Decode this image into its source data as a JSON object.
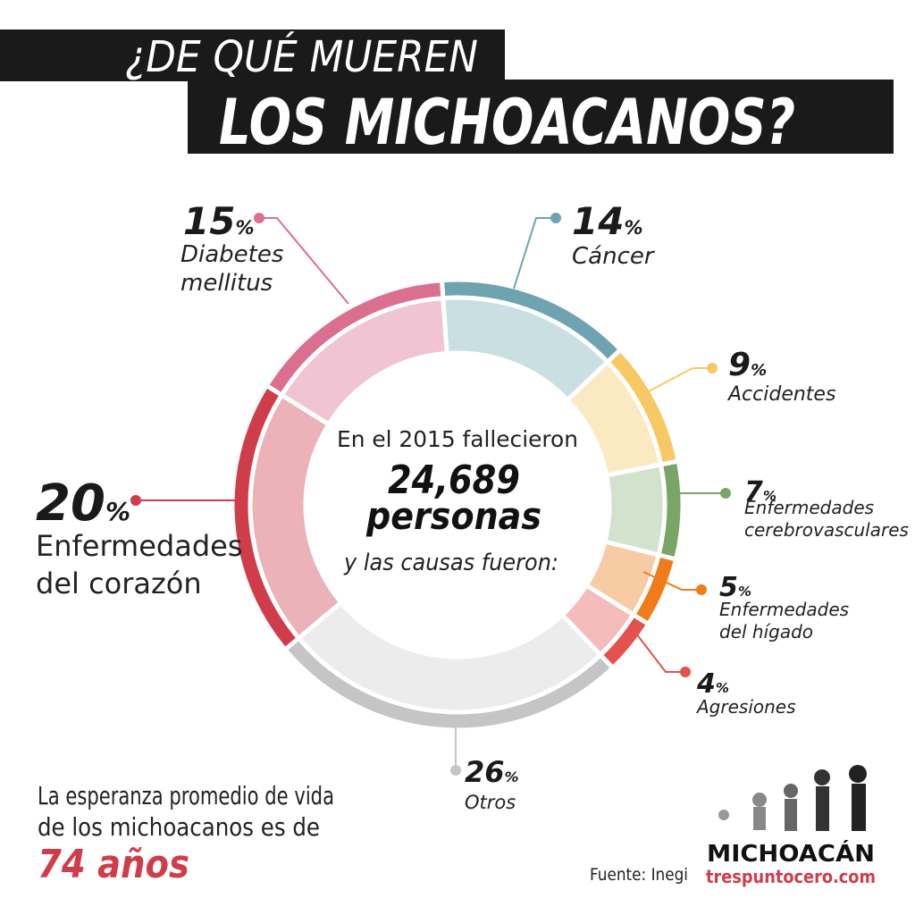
{
  "title_lines": [
    "¿DE QUÉ MUEREN",
    "LOS MICHOACANOS?"
  ],
  "chart_data": {
    "type": "donut",
    "categories": [
      [
        "Cáncer"
      ],
      [
        "Accidentes"
      ],
      [
        "Enfermedades",
        "cerebrovasculares"
      ],
      [
        "Enfermedades",
        "del hígado"
      ],
      [
        "Agresiones"
      ],
      [
        "Otros"
      ],
      [
        "Enfermedades",
        "del corazón"
      ],
      [
        "Diabetes",
        "mellitus"
      ]
    ],
    "values": [
      14,
      9,
      7,
      5,
      4,
      26,
      20,
      15
    ],
    "unit": "%",
    "colors": [
      "#6ea4b0",
      "#f6c965",
      "#7aa566",
      "#ef7b1a",
      "#e4524d",
      "#c5c5c5",
      "#cf3d4b",
      "#da6f8f"
    ],
    "light_colors": [
      "#c9dfe2",
      "#fbe9c1",
      "#d3e2cc",
      "#f7cca5",
      "#f5bcbc",
      "#ececec",
      "#ebb2b8",
      "#f0c4d2"
    ],
    "center_lines": [
      "En el 2015 fallecieron",
      "24,689",
      "personas",
      "y las causas fueron:"
    ]
  },
  "footer": {
    "life_lines": [
      "La esperanza promedio de vida",
      "de los michoacanos es de"
    ],
    "life_value": "74 años",
    "source": "Fuente: Inegi",
    "brand": "MICHOACÁN",
    "site": "trespuntocero.com"
  }
}
